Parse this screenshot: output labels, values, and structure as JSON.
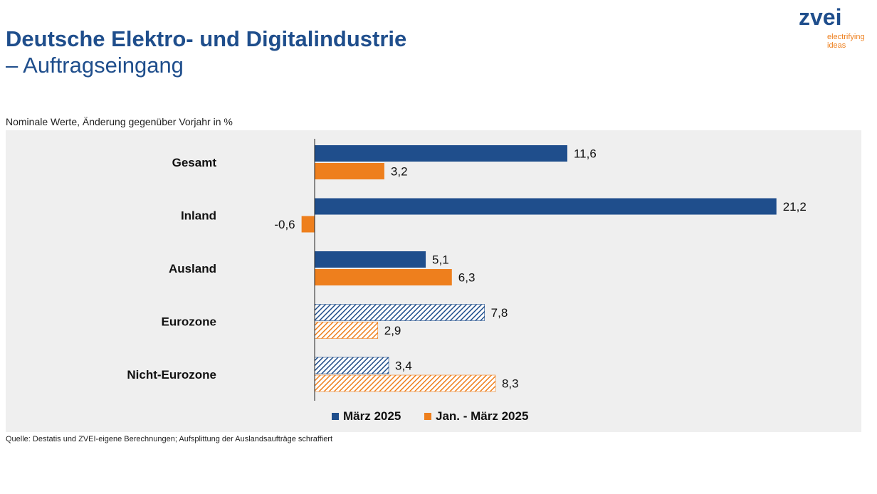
{
  "header": {
    "title_line1": "Deutsche Elektro- und Digitalindustrie",
    "title_line2": "– Auftragseingang"
  },
  "logo": {
    "brand": "zvei",
    "tagline_line1": "electrifying",
    "tagline_line2": "ideas"
  },
  "subtitle": "Nominale Werte, Änderung gegenüber Vorjahr in %",
  "source": "Quelle: Destatis und ZVEI-eigene Berechnungen; Aufsplittung der Auslandsaufträge schraffiert",
  "colors": {
    "series1": "#1f4e8c",
    "series2": "#ee7f1d",
    "background": "#efefef"
  },
  "chart_data": {
    "type": "bar",
    "orientation": "horizontal",
    "title": "",
    "categories": [
      "Gesamt",
      "Inland",
      "Ausland",
      "Eurozone",
      "Nicht-Eurozone"
    ],
    "hatched_categories": [
      "Eurozone",
      "Nicht-Eurozone"
    ],
    "series": [
      {
        "name": "März 2025",
        "values": [
          11.6,
          21.2,
          5.1,
          7.8,
          3.4
        ],
        "labels": [
          "11,6",
          "21,2",
          "5,1",
          "7,8",
          "3,4"
        ]
      },
      {
        "name": "Jan. - März 2025",
        "values": [
          3.2,
          -0.6,
          6.3,
          2.9,
          8.3
        ],
        "labels": [
          "3,2",
          "-0,6",
          "6,3",
          "2,9",
          "8,3"
        ]
      }
    ],
    "xlim": [
      -0.6,
      21.2
    ],
    "legend_position": "bottom"
  }
}
